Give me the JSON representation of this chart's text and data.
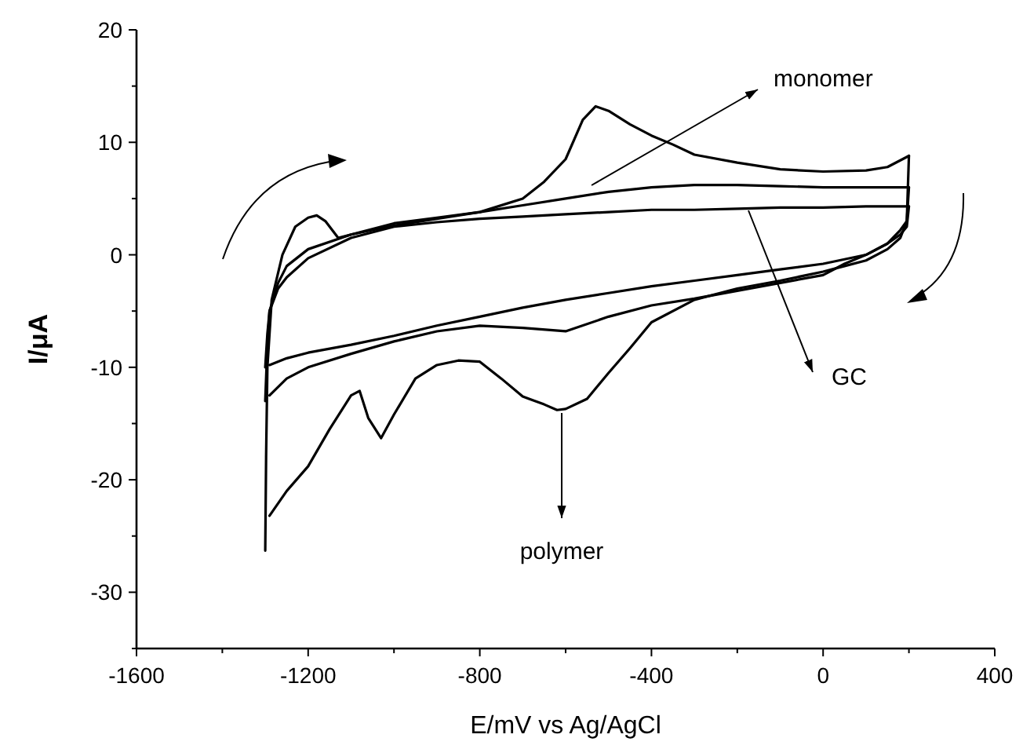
{
  "chart_data": {
    "type": "line",
    "xlabel": "E/mV vs Ag/AgCl",
    "ylabel": "I/μA",
    "xlim": [
      -1600,
      400
    ],
    "xticks": [
      -1600,
      {
        "value": -1400,
        "label": null
      },
      -1200,
      {
        "value": -1000,
        "label": null
      },
      -800,
      {
        "value": -600,
        "label": null
      },
      -400,
      {
        "value": -200,
        "label": null
      },
      0,
      {
        "value": 200,
        "label": null
      },
      400
    ],
    "ylim": [
      -35,
      20
    ],
    "yticks": [
      {
        "value": -35,
        "label": null
      },
      -30,
      {
        "value": -25,
        "label": null
      },
      -20,
      {
        "value": -15,
        "label": null
      },
      -10,
      {
        "value": -5,
        "label": null
      },
      0,
      {
        "value": 5,
        "label": null
      },
      10,
      {
        "value": 15,
        "label": null
      },
      20
    ],
    "marker": "none",
    "line_style": "solid",
    "series": [
      {
        "color": "#000000",
        "x": [
          -1300,
          -1295,
          -1290,
          -1270,
          -1250,
          -1200,
          -1100,
          -1000,
          -900,
          -800,
          -700,
          -600,
          -500,
          -400,
          -300,
          -200,
          -100,
          0,
          100,
          200
        ],
        "values": [
          -10,
          -7,
          -5,
          -3,
          -2,
          -0.3,
          1.5,
          2.5,
          2.9,
          3.2,
          3.4,
          3.6,
          3.8,
          4,
          4,
          4.1,
          4.2,
          4.2,
          4.3,
          4.3
        ]
      },
      {
        "color": "#000000",
        "x": [
          200,
          195,
          180,
          150,
          100,
          50,
          0,
          -100,
          -200,
          -300,
          -400,
          -500,
          -600,
          -700,
          -800,
          -900,
          -1000,
          -1100,
          -1200,
          -1250,
          -1290
        ],
        "values": [
          4.3,
          2.5,
          1.8,
          1,
          0,
          -0.4,
          -0.8,
          -1.3,
          -1.8,
          -2.3,
          -2.8,
          -3.4,
          -4,
          -4.7,
          -5.5,
          -6.3,
          -7.2,
          -8,
          -8.7,
          -9.2,
          -9.8
        ]
      },
      {
        "color": "#000000",
        "x": [
          -1300,
          -1295,
          -1290,
          -1270,
          -1250,
          -1200,
          -1100,
          -1000,
          -900,
          -800,
          -700,
          -600,
          -500,
          -400,
          -300,
          -200,
          -100,
          0,
          100,
          200
        ],
        "values": [
          -13,
          -8,
          -5,
          -2.5,
          -1,
          0.5,
          1.8,
          2.8,
          3.3,
          3.8,
          4.4,
          5,
          5.6,
          6,
          6.2,
          6.2,
          6.1,
          6,
          6,
          6
        ]
      },
      {
        "color": "#000000",
        "x": [
          200,
          195,
          180,
          150,
          100,
          50,
          0,
          -100,
          -200,
          -300,
          -400,
          -500,
          -600,
          -700,
          -800,
          -900,
          -1000,
          -1100,
          -1200,
          -1250,
          -1290
        ],
        "values": [
          6,
          3,
          2.2,
          1,
          0,
          -0.8,
          -1.8,
          -2.5,
          -3.2,
          -3.9,
          -4.5,
          -5.5,
          -6.8,
          -6.5,
          -6.3,
          -6.8,
          -7.7,
          -8.8,
          -10,
          -11,
          -12.5
        ]
      },
      {
        "color": "#000000",
        "x": [
          -1300,
          -1298,
          -1295,
          -1285,
          -1260,
          -1230,
          -1200,
          -1180,
          -1160,
          -1130,
          -1100,
          -1000,
          -900,
          -800,
          -700,
          -650,
          -600,
          -560,
          -530,
          -500,
          -450,
          -400,
          -350,
          -300,
          -200,
          -100,
          0,
          100,
          150,
          200
        ],
        "values": [
          -26.3,
          -18,
          -10,
          -4,
          0,
          2.5,
          3.3,
          3.5,
          3,
          1.5,
          1.8,
          2.6,
          3.2,
          3.8,
          5,
          6.5,
          8.5,
          12,
          13.2,
          12.8,
          11.6,
          10.6,
          9.8,
          8.9,
          8.2,
          7.6,
          7.4,
          7.5,
          7.8,
          8.8
        ]
      },
      {
        "color": "#000000",
        "x": [
          200,
          195,
          180,
          150,
          100,
          50,
          0,
          -100,
          -200,
          -300,
          -400,
          -450,
          -500,
          -550,
          -600,
          -620,
          -650,
          -700,
          -750,
          -800,
          -850,
          -900,
          -950,
          -1000,
          -1030,
          -1060,
          -1080,
          -1100,
          -1150,
          -1200,
          -1250,
          -1290
        ],
        "values": [
          8.8,
          3,
          1.5,
          0.5,
          -0.5,
          -1,
          -1.5,
          -2.3,
          -3,
          -4,
          -6,
          -8.3,
          -10.5,
          -12.8,
          -13.7,
          -13.8,
          -13.3,
          -12.6,
          -11,
          -9.5,
          -9.4,
          -9.8,
          -11,
          -14.2,
          -16.3,
          -14.5,
          -12.1,
          -12.5,
          -15.5,
          -18.8,
          -21,
          -23.2
        ]
      }
    ],
    "annotations": [
      "monomer",
      "GC",
      "polymer"
    ]
  }
}
